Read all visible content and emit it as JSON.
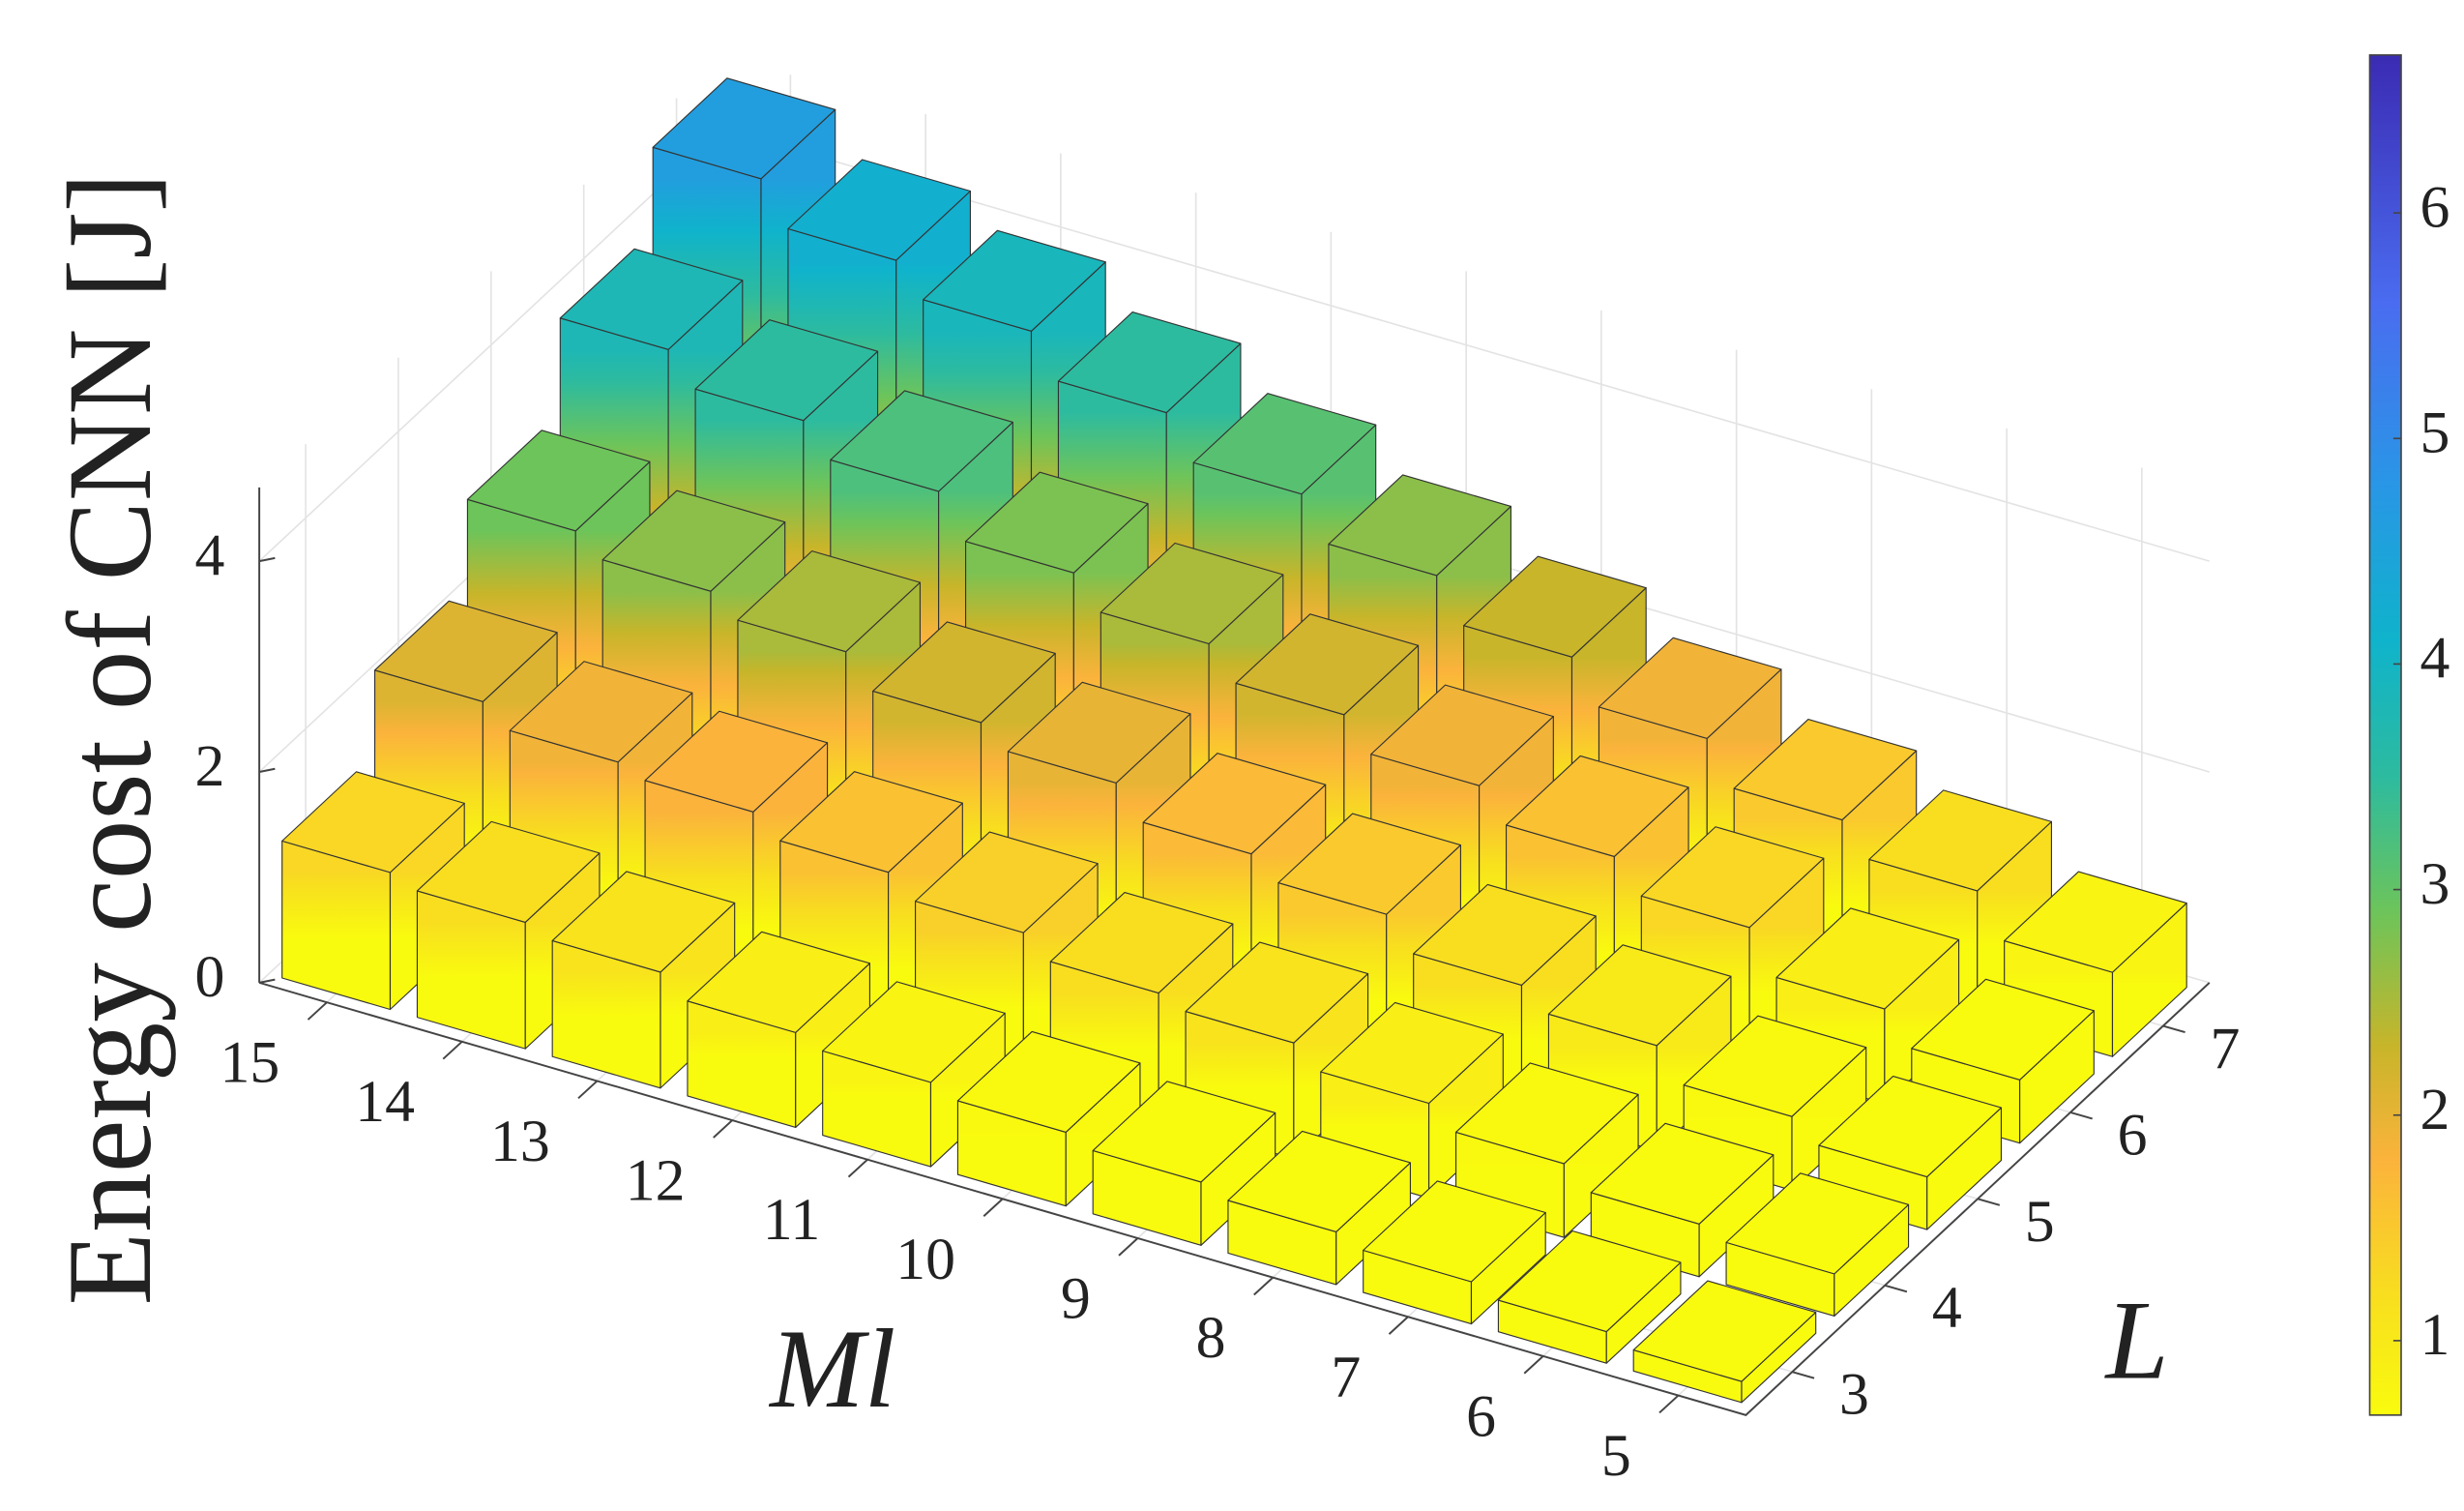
{
  "chart_data": {
    "type": "bar3d",
    "xlabel": "Ml",
    "ylabel": "L",
    "zlabel": "Energy cost of CNN [J]",
    "x_categories": [
      "15",
      "14",
      "13",
      "12",
      "11",
      "10",
      "9",
      "8",
      "7",
      "6",
      "5"
    ],
    "y_categories": [
      "3",
      "4",
      "5",
      "6",
      "7"
    ],
    "values": [
      [
        1.3,
        2.1,
        2.9,
        3.8,
        4.6
      ],
      [
        1.2,
        1.9,
        2.7,
        3.5,
        4.2
      ],
      [
        1.1,
        1.8,
        2.5,
        3.2,
        3.9
      ],
      [
        0.9,
        1.6,
        2.2,
        2.8,
        3.5
      ],
      [
        0.8,
        1.4,
        2.0,
        2.5,
        3.1
      ],
      [
        0.7,
        1.2,
        1.7,
        2.2,
        2.7
      ],
      [
        0.6,
        1.1,
        1.5,
        1.9,
        2.3
      ],
      [
        0.5,
        0.9,
        1.2,
        1.6,
        1.9
      ],
      [
        0.4,
        0.7,
        1.0,
        1.3,
        1.5
      ],
      [
        0.3,
        0.5,
        0.7,
        0.9,
        1.2
      ],
      [
        0.2,
        0.4,
        0.5,
        0.6,
        0.8
      ]
    ],
    "zlim": [
      0,
      4.7
    ],
    "zticks": [
      0,
      2,
      4
    ],
    "clim": [
      0.67,
      6.7
    ],
    "cticks": [
      1,
      2,
      3,
      4,
      5,
      6
    ],
    "colormap": [
      {
        "value": 0.67,
        "color": "#f9fb0e"
      },
      {
        "value": 1.2,
        "color": "#f8de1f"
      },
      {
        "value": 1.8,
        "color": "#fbb33c"
      },
      {
        "value": 2.3,
        "color": "#c8b52a"
      },
      {
        "value": 2.9,
        "color": "#6dc45a"
      },
      {
        "value": 3.5,
        "color": "#2dbb9f"
      },
      {
        "value": 4.1,
        "color": "#0fb3cb"
      },
      {
        "value": 4.8,
        "color": "#2996e6"
      },
      {
        "value": 5.6,
        "color": "#4a6cf0"
      },
      {
        "value": 6.7,
        "color": "#3b2bb3"
      }
    ],
    "grid": true
  }
}
